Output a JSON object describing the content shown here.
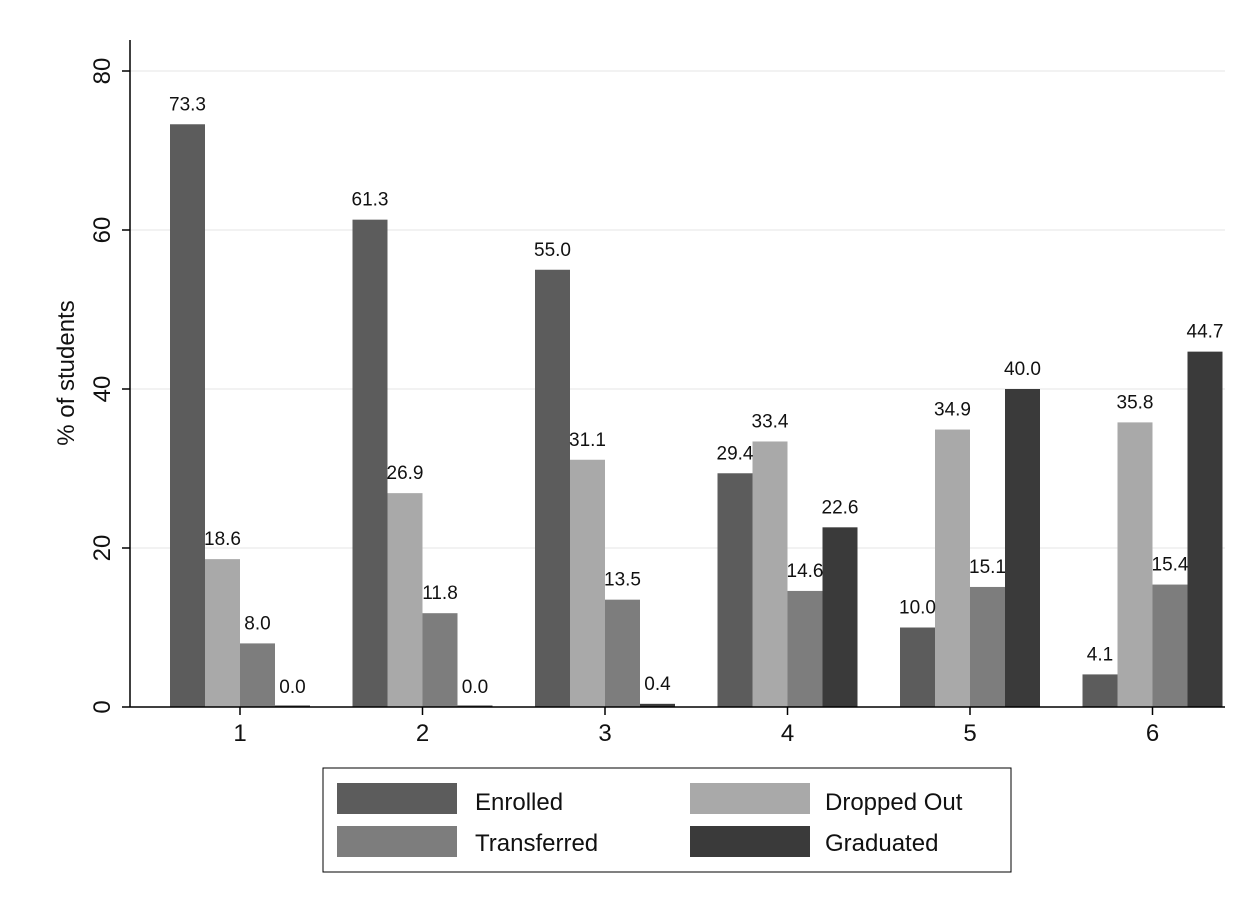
{
  "chart_data": {
    "type": "bar",
    "title": "",
    "xlabel": "",
    "ylabel": "% of students",
    "ylim": [
      0,
      80
    ],
    "yticks": [
      0,
      20,
      40,
      60,
      80
    ],
    "grid": true,
    "legend_position": "bottom",
    "categories": [
      "1",
      "2",
      "3",
      "4",
      "5",
      "6"
    ],
    "series": [
      {
        "name": "Enrolled",
        "values": [
          73.3,
          61.3,
          55.0,
          29.4,
          10.0,
          4.1
        ],
        "labels": [
          "73.3",
          "61.3",
          "55.0",
          "29.4",
          "10.0",
          "4.1"
        ],
        "color": "#5c5c5c"
      },
      {
        "name": "Dropped Out",
        "values": [
          18.6,
          26.9,
          31.1,
          33.4,
          34.9,
          35.8
        ],
        "labels": [
          "18.6",
          "26.9",
          "31.1",
          "33.4",
          "34.9",
          "35.8"
        ],
        "color": "#a9a9a9"
      },
      {
        "name": "Transferred",
        "values": [
          8.0,
          11.8,
          13.5,
          14.6,
          15.1,
          15.4
        ],
        "labels": [
          "8.0",
          "11.8",
          "13.5",
          "14.6",
          "15.1",
          "15.4"
        ],
        "color": "#7d7d7d"
      },
      {
        "name": "Graduated",
        "values": [
          0.0,
          0.0,
          0.4,
          22.6,
          40.0,
          44.7
        ],
        "labels": [
          "0.0",
          "0.0",
          "0.4",
          "22.6",
          "40.0",
          "44.7"
        ],
        "color": "#3a3a3a"
      }
    ],
    "legend_order": [
      "Enrolled",
      "Dropped Out",
      "Transferred",
      "Graduated"
    ]
  }
}
